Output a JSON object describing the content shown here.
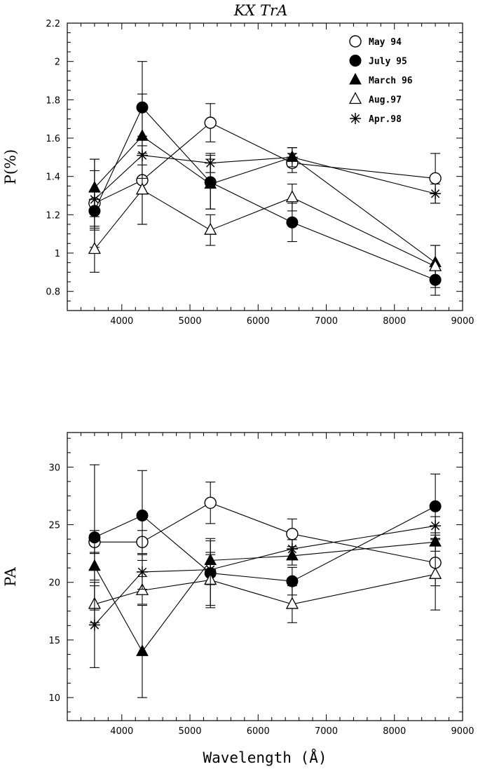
{
  "chart_data": [
    {
      "type": "line",
      "title": "KX TrA",
      "xlabel": "",
      "ylabel": "P(%)",
      "xlim": [
        3200,
        9000
      ],
      "ylim": [
        0.7,
        2.2
      ],
      "xticks": [
        4000,
        5000,
        6000,
        7000,
        8000,
        9000
      ],
      "yticks": [
        0.8,
        1,
        1.2,
        1.4,
        1.6,
        1.8,
        2,
        2.2
      ],
      "legend": "top-right",
      "x": [
        3600,
        4300,
        5300,
        6500,
        8600
      ],
      "series": [
        {
          "name": "May 94",
          "marker": "open-circle",
          "values": [
            1.26,
            1.38,
            1.68,
            1.47,
            1.39
          ],
          "errors": [
            0.23,
            0.23,
            0.1,
            0.05,
            0.13
          ]
        },
        {
          "name": "July 95",
          "marker": "filled-circle",
          "values": [
            1.22,
            1.76,
            1.37,
            1.16,
            0.86
          ],
          "errors": [
            0.1,
            0.24,
            0.14,
            0.1,
            0.08
          ]
        },
        {
          "name": "March 96",
          "marker": "filled-triangle",
          "values": [
            1.34,
            1.61,
            1.36,
            1.5,
            0.95
          ],
          "errors": [
            0.15,
            0.22,
            0.13,
            0.05,
            0.09
          ]
        },
        {
          "name": "Aug.97",
          "marker": "open-triangle",
          "values": [
            1.02,
            1.33,
            1.12,
            1.29,
            0.93
          ],
          "errors": [
            0.12,
            0.18,
            0.08,
            0.07,
            0.11
          ]
        },
        {
          "name": "Apr.98",
          "marker": "asterisk",
          "values": [
            1.28,
            1.51,
            1.47,
            1.5,
            1.31
          ],
          "errors": [
            0.15,
            0.05,
            0.05,
            0.05,
            0.05
          ]
        }
      ]
    },
    {
      "type": "line",
      "title": "",
      "xlabel": "Wavelength (Å)",
      "ylabel": "PA",
      "xlim": [
        3200,
        9000
      ],
      "ylim": [
        8,
        33
      ],
      "xticks": [
        4000,
        5000,
        6000,
        7000,
        8000,
        9000
      ],
      "yticks": [
        10,
        15,
        20,
        25,
        30
      ],
      "x": [
        3600,
        4300,
        5300,
        6500,
        8600
      ],
      "series": [
        {
          "name": "May 94",
          "marker": "open-circle",
          "values": [
            23.5,
            23.5,
            26.9,
            24.2,
            21.7
          ],
          "errors": [
            1.0,
            1.0,
            1.8,
            1.3,
            2.0
          ]
        },
        {
          "name": "July 95",
          "marker": "filled-circle",
          "values": [
            23.9,
            25.8,
            20.8,
            20.1,
            26.6
          ],
          "errors": [
            6.3,
            3.9,
            2.8,
            1.2,
            2.8
          ]
        },
        {
          "name": "March 96",
          "marker": "filled-triangle",
          "values": [
            21.4,
            14.0,
            21.9,
            22.3,
            23.5
          ],
          "errors": [
            1.2,
            4.0,
            1.9,
            0.8,
            0.8
          ]
        },
        {
          "name": "Aug.97",
          "marker": "open-triangle",
          "values": [
            18.1,
            19.3,
            20.2,
            18.1,
            20.7
          ],
          "errors": [
            1.6,
            1.2,
            2.4,
            1.6,
            3.1
          ]
        },
        {
          "name": "Apr.98",
          "marker": "asterisk",
          "values": [
            16.3,
            20.9,
            21.1,
            22.9,
            24.9
          ],
          "errors": [
            3.7,
            1.5,
            1.3,
            0.8,
            0.8
          ]
        }
      ]
    }
  ]
}
